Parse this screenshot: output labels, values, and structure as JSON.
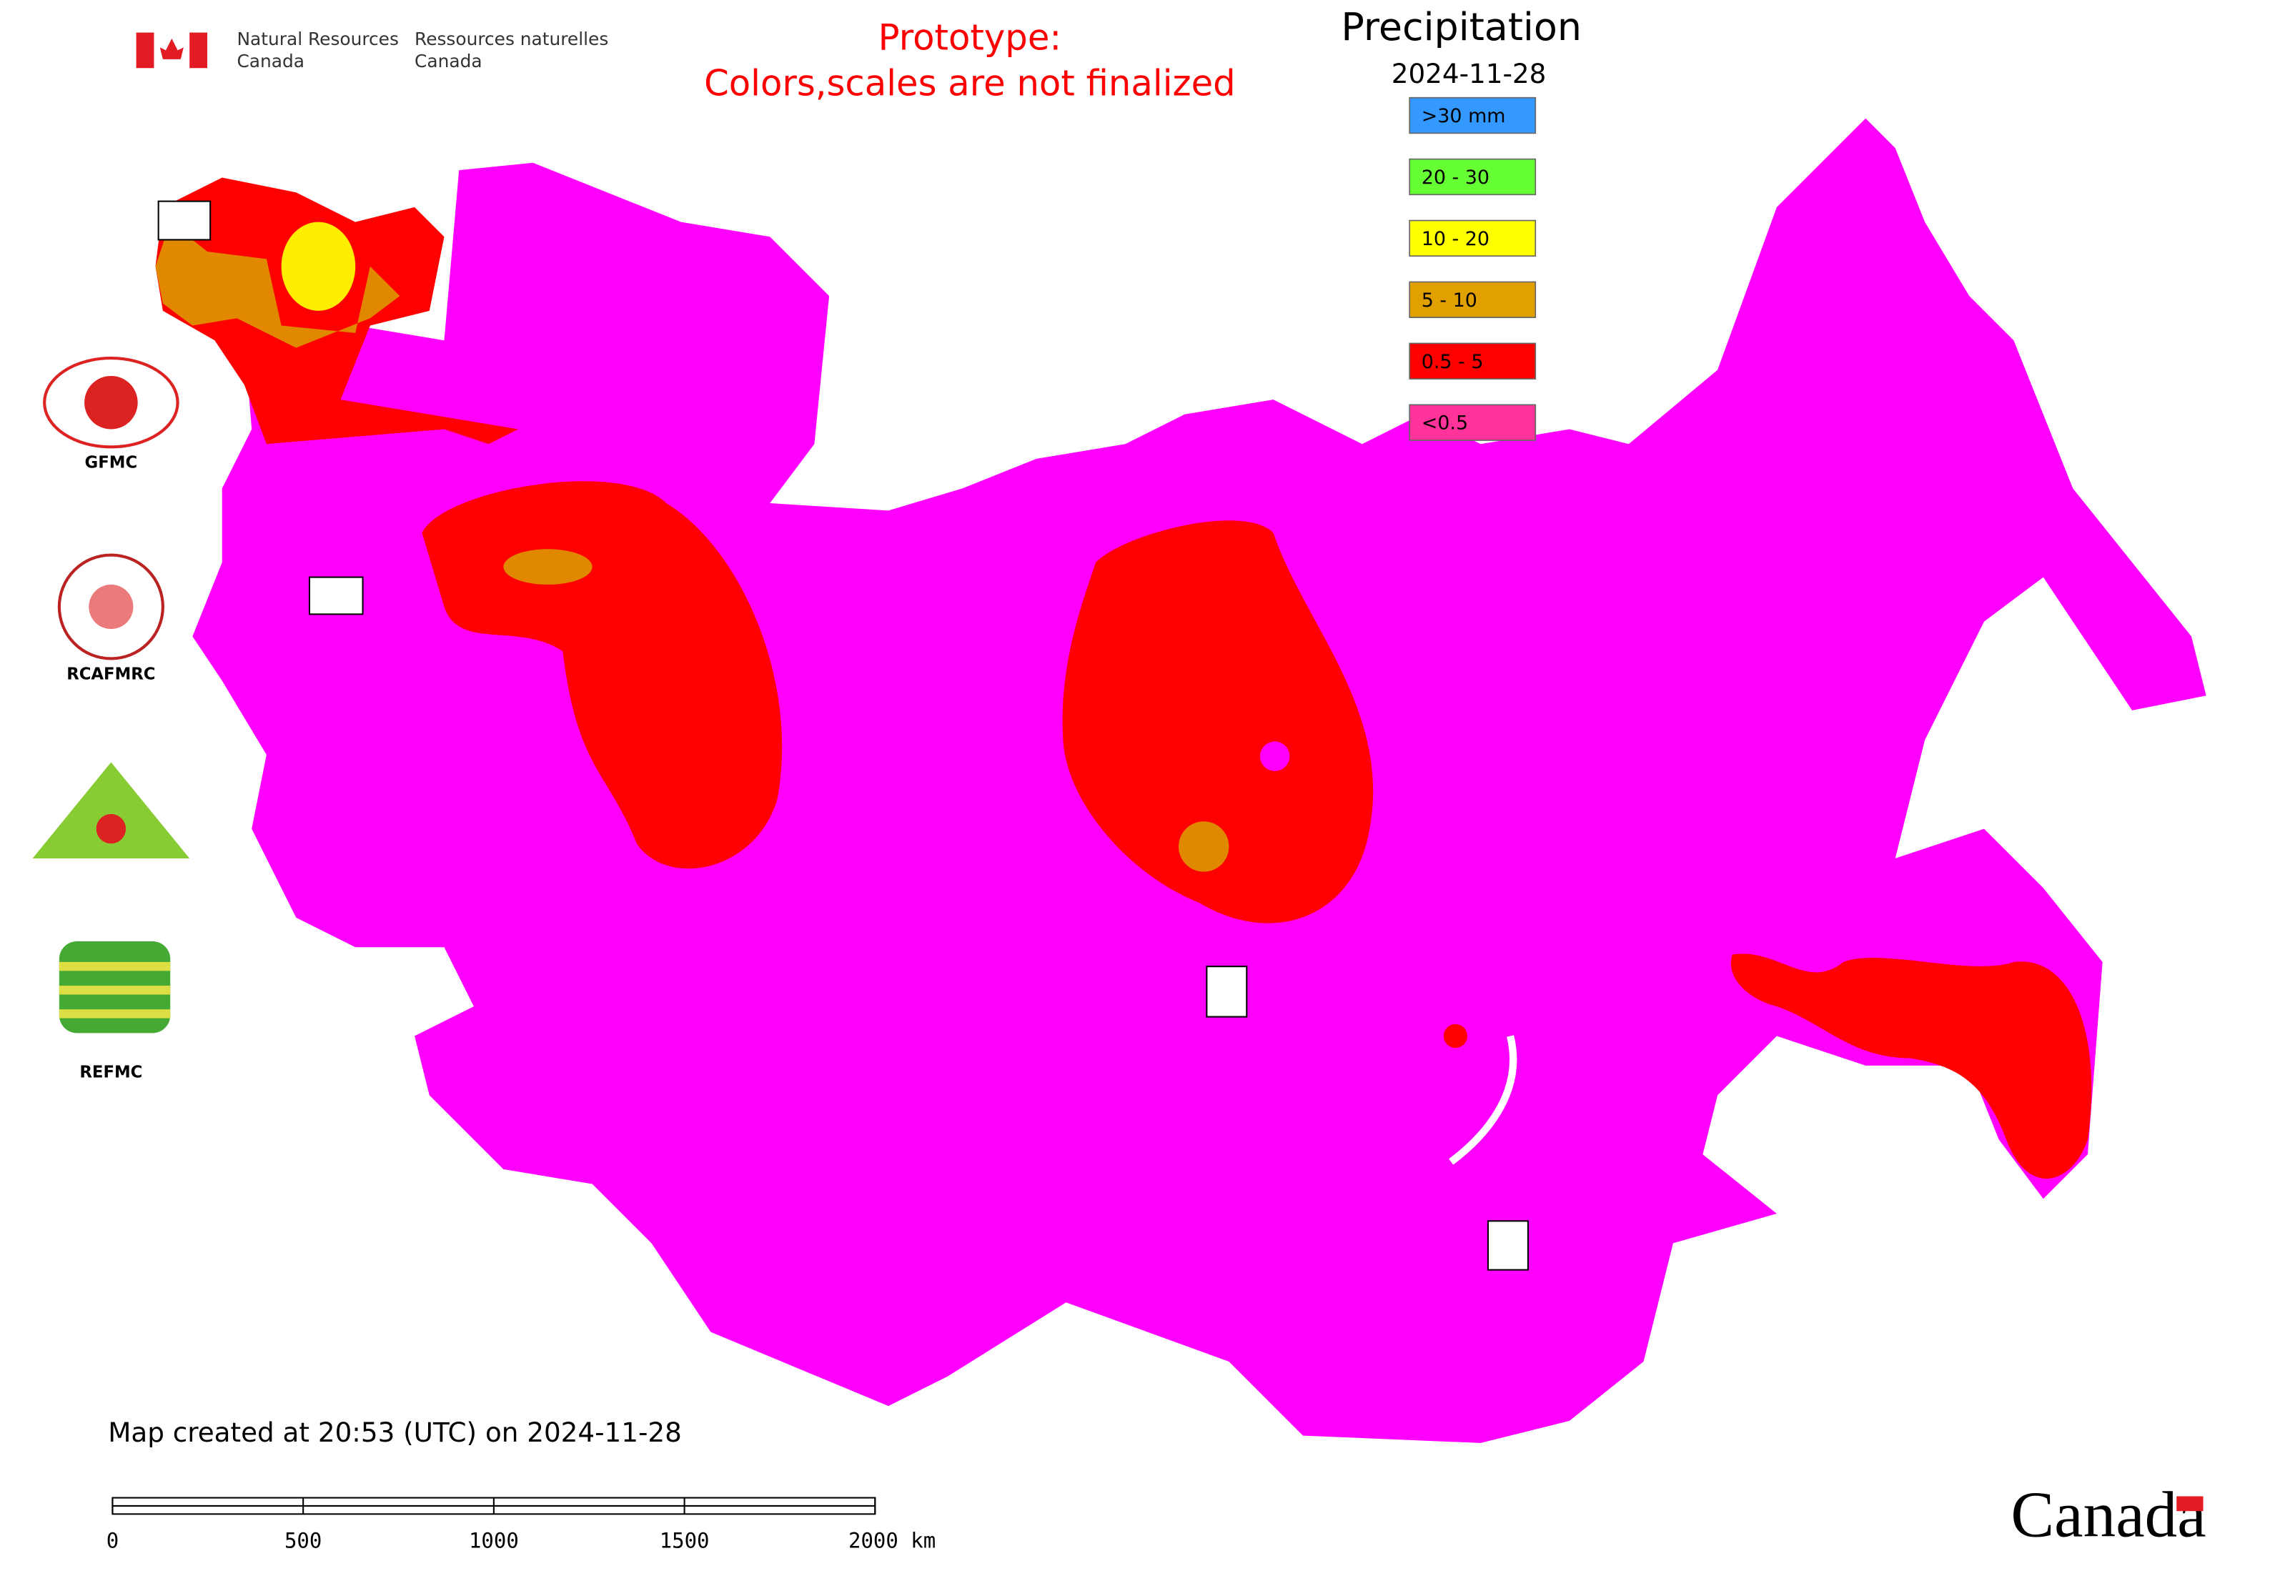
{
  "header": {
    "agency_en_1": "Natural Resources",
    "agency_en_2": "Canada",
    "agency_fr_1": "Ressources naturelles",
    "agency_fr_2": "Canada",
    "notice_1": "Prototype:",
    "notice_2": "Colors,scales are not finalized"
  },
  "legend": {
    "title": "Precipitation",
    "date": "2024-11-28",
    "items": [
      {
        "label": ">30 mm",
        "color": "#3399ff"
      },
      {
        "label": "20 - 30",
        "color": "#66ff33"
      },
      {
        "label": "10 - 20",
        "color": "#ffff00"
      },
      {
        "label": "5 - 10",
        "color": "#e0a000"
      },
      {
        "label": "0.5 - 5",
        "color": "#ff0000"
      },
      {
        "label": "<0.5",
        "color": "#ff3399"
      }
    ]
  },
  "logos": [
    "GFMC",
    "RCAFMRC",
    "REFMC"
  ],
  "footer": {
    "created": "Map created at 20:53 (UTC) on 2024-11-28",
    "wordmark": "Canada"
  },
  "scale_bar": {
    "ticks": [
      0,
      500,
      1000,
      1500,
      {
        "value": 2000,
        "label": "2000 km"
      }
    ]
  }
}
